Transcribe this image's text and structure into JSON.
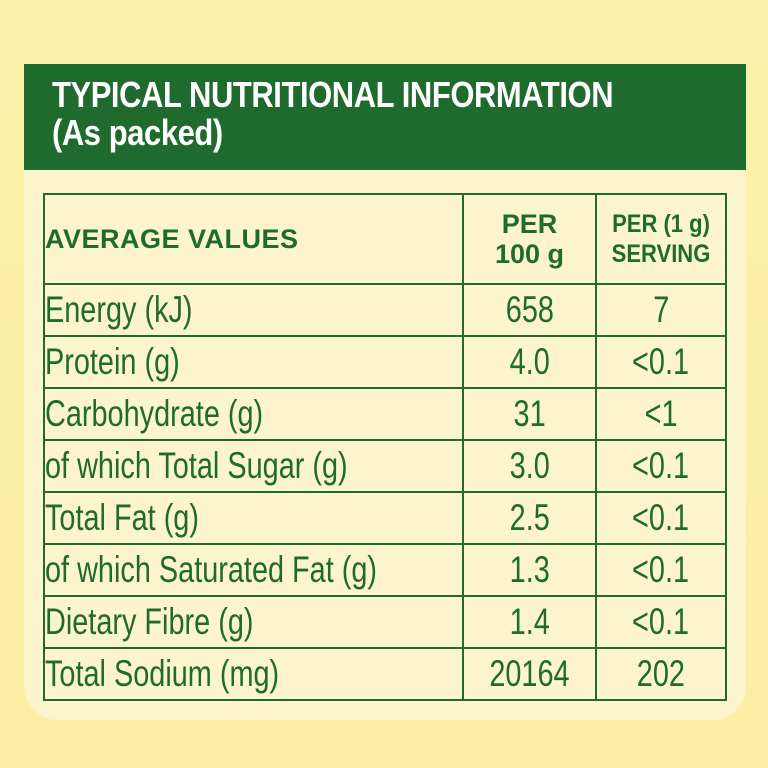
{
  "header": {
    "title": "TYPICAL NUTRITIONAL INFORMATION",
    "subtitle": "(As packed)"
  },
  "table": {
    "columns": {
      "label": "AVERAGE VALUES",
      "per100_line1": "PER",
      "per100_line2": "100 g",
      "serving_line1": "PER (1 g)",
      "serving_line2": "SERVING"
    },
    "rows": [
      {
        "label": "Energy (kJ)",
        "per100": "658",
        "serving": "7"
      },
      {
        "label": "Protein (g)",
        "per100": "4.0",
        "serving": "<0.1"
      },
      {
        "label": "Carbohydrate (g)",
        "per100": "31",
        "serving": "<1"
      },
      {
        "label": "of which Total Sugar (g)",
        "per100": "3.0",
        "serving": "<0.1"
      },
      {
        "label": "Total Fat (g)",
        "per100": "2.5",
        "serving": "<0.1"
      },
      {
        "label": "of which Saturated Fat (g)",
        "per100": "1.3",
        "serving": "<0.1"
      },
      {
        "label": "Dietary Fibre (g)",
        "per100": "1.4",
        "serving": "<0.1"
      },
      {
        "label": "Total Sodium (mg)",
        "per100": "20164",
        "serving": "202"
      }
    ]
  },
  "colors": {
    "green": "#1f6b2e",
    "panel": "#fcf5cc",
    "background": "#fdf0a6"
  }
}
